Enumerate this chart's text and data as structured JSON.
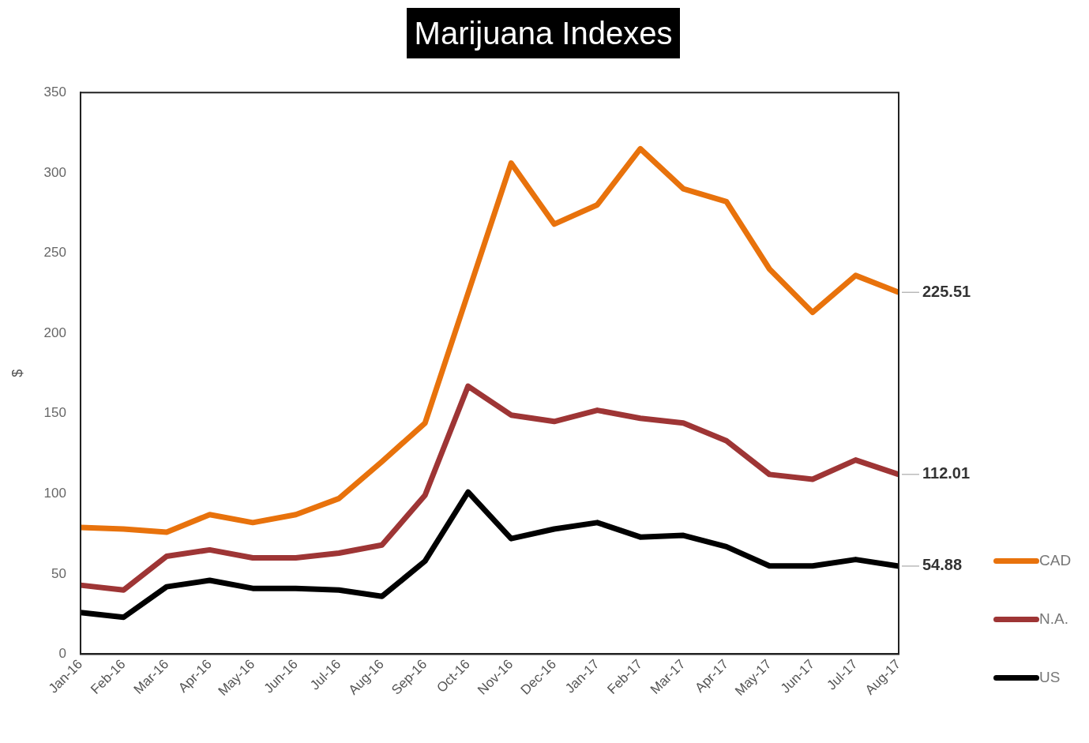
{
  "chart_data": {
    "type": "line",
    "title": "Marijuana Indexes",
    "ylabel": "$",
    "categories": [
      "Jan-16",
      "Feb-16",
      "Mar-16",
      "Apr-16",
      "May-16",
      "Jun-16",
      "Jul-16",
      "Aug-16",
      "Sep-16",
      "Oct-16",
      "Nov-16",
      "Dec-16",
      "Jan-17",
      "Feb-17",
      "Mar-17",
      "Apr-17",
      "May-17",
      "Jun-17",
      "Jul-17",
      "Aug-17"
    ],
    "series": [
      {
        "name": "CAD",
        "color": "#e8720c",
        "values": [
          79,
          78,
          76,
          87,
          82,
          87,
          97,
          120,
          144,
          225,
          306,
          268,
          280,
          315,
          290,
          282,
          240,
          213,
          236,
          225.51
        ],
        "value_labels": [
          null,
          null,
          null,
          null,
          null,
          null,
          null,
          null,
          null,
          null,
          null,
          null,
          null,
          null,
          null,
          null,
          null,
          null,
          null,
          "225.51"
        ]
      },
      {
        "name": "N.A.",
        "color": "#9e3535",
        "values": [
          43,
          40,
          61,
          65,
          60,
          60,
          63,
          68,
          99,
          167,
          149,
          145,
          152,
          147,
          144,
          133,
          112,
          109,
          121,
          112.01
        ],
        "value_labels": [
          null,
          null,
          null,
          null,
          null,
          null,
          null,
          null,
          null,
          null,
          null,
          null,
          null,
          null,
          null,
          null,
          null,
          null,
          null,
          "112.01"
        ]
      },
      {
        "name": "US",
        "color": "#000000",
        "values": [
          26,
          23,
          42,
          46,
          41,
          41,
          40,
          36,
          58,
          101,
          72,
          78,
          82,
          73,
          74,
          67,
          55,
          55,
          59,
          54.88
        ],
        "value_labels": [
          null,
          null,
          null,
          null,
          null,
          null,
          null,
          null,
          null,
          null,
          null,
          null,
          null,
          null,
          null,
          null,
          null,
          null,
          null,
          "54.88"
        ]
      }
    ],
    "ylim": [
      0,
      350
    ],
    "yticks": [
      0,
      50,
      100,
      150,
      200,
      250,
      300,
      350
    ],
    "grid": false,
    "legend": "bottom right",
    "marker": "none",
    "line_style": "solid"
  }
}
